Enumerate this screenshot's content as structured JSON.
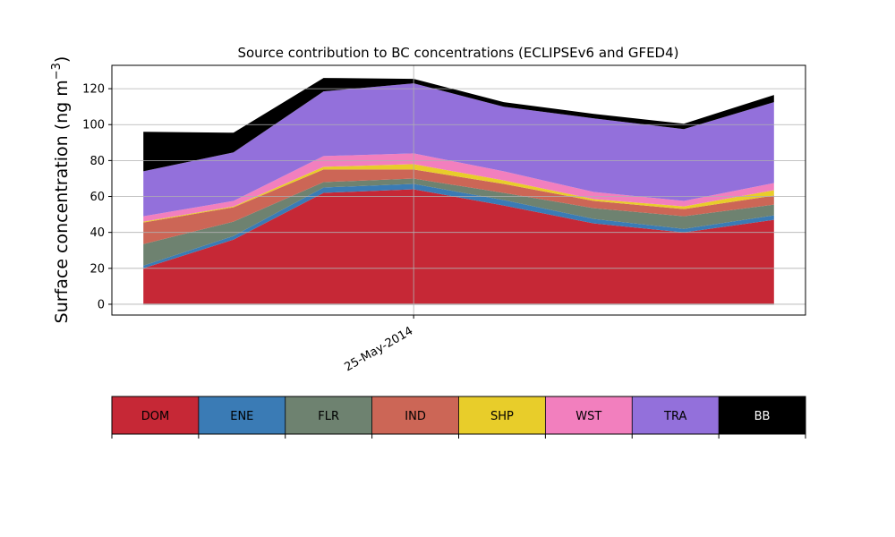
{
  "chart_data": {
    "type": "area",
    "stacked": true,
    "title": "Source contribution to BC concentrations (ECLIPSEv6 and GFED4)",
    "ylabel": "Surface concentration (ng m",
    "ylabel_superscript": "−3",
    "ylabel_suffix": ")",
    "ylim": [
      -6,
      133
    ],
    "yticks": [
      0,
      20,
      40,
      60,
      80,
      100,
      120
    ],
    "x": [
      1,
      2,
      3,
      4,
      5,
      6,
      7,
      8
    ],
    "xlim": [
      0.65,
      8.35
    ],
    "xtick": {
      "x": 4,
      "label": "25-May-2014"
    },
    "grid": true,
    "series": [
      {
        "name": "DOM",
        "color": "#c62836",
        "values": [
          20,
          36,
          62,
          64,
          55,
          45,
          40,
          47
        ]
      },
      {
        "name": "ENE",
        "color": "#3a7bb5",
        "values": [
          1.5,
          2,
          3,
          3,
          3,
          2.5,
          2,
          2.5
        ]
      },
      {
        "name": "FLR",
        "color": "#6e8270",
        "values": [
          12,
          8,
          3,
          3,
          4,
          6,
          7,
          6
        ]
      },
      {
        "name": "IND",
        "color": "#cc6656",
        "values": [
          12,
          8,
          7,
          5,
          5,
          4,
          4,
          5
        ]
      },
      {
        "name": "SHP",
        "color": "#e8cd2a",
        "values": [
          0.5,
          0.5,
          1.5,
          3,
          2,
          1,
          1.5,
          3
        ]
      },
      {
        "name": "WST",
        "color": "#f27fbe",
        "values": [
          3,
          3,
          6,
          6,
          5,
          4,
          3,
          4
        ]
      },
      {
        "name": "TRA",
        "color": "#9370db",
        "values": [
          25,
          27,
          36,
          39,
          36,
          41,
          40,
          45
        ]
      },
      {
        "name": "BB",
        "color": "#000000",
        "values": [
          22,
          11,
          7.5,
          2.5,
          2.5,
          2.5,
          3,
          4
        ]
      }
    ]
  }
}
